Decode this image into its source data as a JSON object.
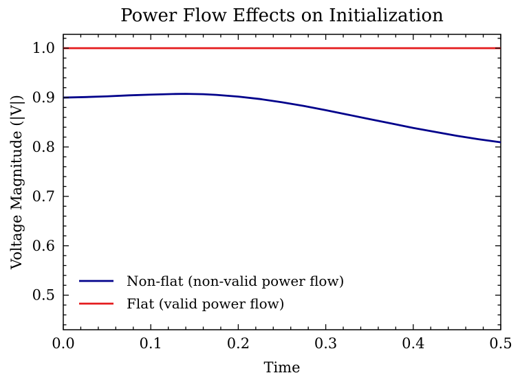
{
  "chart_data": {
    "type": "line",
    "title": "Power Flow Effects on Initialization",
    "xlabel": "Time",
    "ylabel": "Voltage Magnitude (|V|)",
    "xlim": [
      0.0,
      0.5
    ],
    "ylim": [
      0.43,
      1.028
    ],
    "xticks": [
      0.0,
      0.1,
      0.2,
      0.3,
      0.4,
      0.5
    ],
    "xtick_labels": [
      "0.0",
      "0.1",
      "0.2",
      "0.3",
      "0.4",
      "0.5"
    ],
    "yticks": [
      0.5,
      0.6,
      0.7,
      0.8,
      0.9,
      1.0
    ],
    "ytick_labels": [
      "0.5",
      "0.6",
      "0.7",
      "0.8",
      "0.9",
      "1.0"
    ],
    "grid": false,
    "legend_position": "lower-left",
    "series": [
      {
        "name": "Non-flat (non-valid power flow)",
        "color": "#00008b",
        "x": [
          0.0,
          0.025,
          0.05,
          0.075,
          0.1,
          0.125,
          0.14,
          0.16,
          0.175,
          0.2,
          0.225,
          0.25,
          0.275,
          0.3,
          0.325,
          0.35,
          0.375,
          0.4,
          0.425,
          0.45,
          0.475,
          0.5
        ],
        "y": [
          0.9,
          0.901,
          0.9025,
          0.9045,
          0.906,
          0.9072,
          0.9075,
          0.9068,
          0.9055,
          0.902,
          0.897,
          0.8905,
          0.883,
          0.8745,
          0.8655,
          0.8565,
          0.8475,
          0.8385,
          0.8305,
          0.8225,
          0.8155,
          0.8095
        ]
      },
      {
        "name": "Flat (valid power flow)",
        "color": "#e41a1c",
        "x": [
          0.0,
          0.5
        ],
        "y": [
          1.0,
          1.0
        ]
      }
    ]
  }
}
